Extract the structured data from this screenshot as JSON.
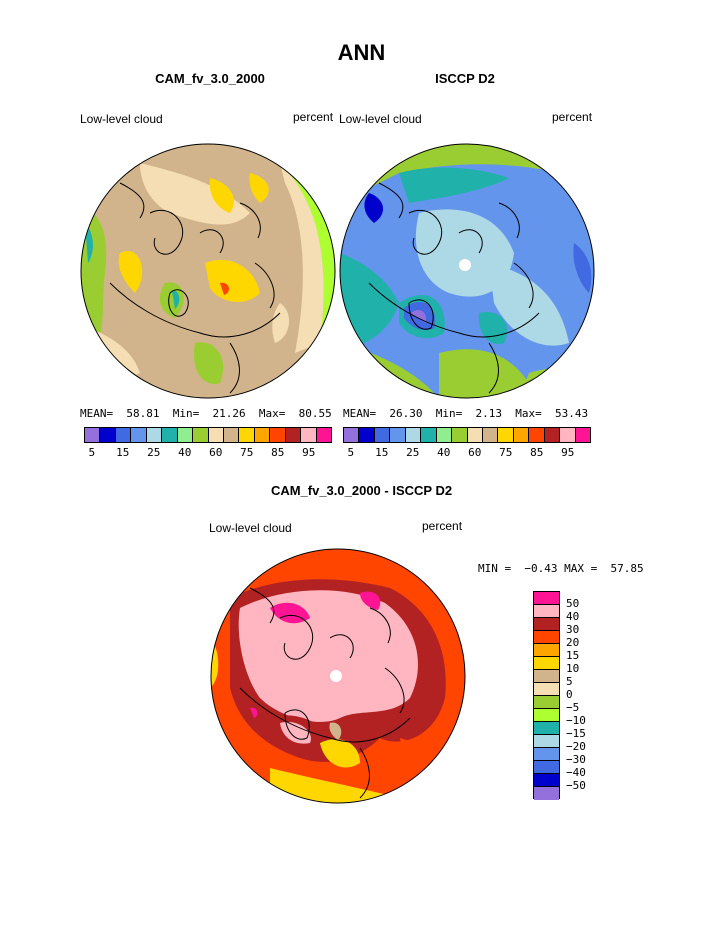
{
  "page_title": "ANN",
  "panels": [
    {
      "title": "CAM_fv_3.0_2000",
      "var_label": "Low-level cloud",
      "units": "percent",
      "mean_label": "MEAN=",
      "mean": "58.81",
      "min_label": "Min=",
      "min": "21.26",
      "max_label": "Max=",
      "max": "80.55"
    },
    {
      "title": "ISCCP D2",
      "var_label": "Low-level cloud",
      "units": "percent",
      "mean_label": "MEAN=",
      "mean": "26.30",
      "min_label": "Min=",
      "min": "2.13",
      "max_label": "Max=",
      "max": "53.43"
    }
  ],
  "colorbar_abs": {
    "colors": [
      "#9370db",
      "#0000cd",
      "#4169e1",
      "#6495ed",
      "#add8e6",
      "#20b2aa",
      "#90ee90",
      "#9acd32",
      "#f5deb3",
      "#d2b48c",
      "#ffd700",
      "#ffa500",
      "#ff4500",
      "#b22222",
      "#ffb6c1",
      "#ff1493"
    ],
    "tick_labels": [
      "5",
      "15",
      "25",
      "40",
      "60",
      "75",
      "85",
      "95"
    ]
  },
  "diff_panel": {
    "title": "CAM_fv_3.0_2000 - ISCCP D2",
    "var_label": "Low-level cloud",
    "units": "percent",
    "minmax_text": "MIN =  −0.43 MAX =  57.85"
  },
  "colorbar_diff": {
    "colors": [
      "#ff1493",
      "#ffb6c1",
      "#b22222",
      "#ff4500",
      "#ffa500",
      "#ffd700",
      "#d2b48c",
      "#f5deb3",
      "#9acd32",
      "#adff2f",
      "#20b2aa",
      "#add8e6",
      "#6495ed",
      "#4169e1",
      "#0000cd",
      "#9370db"
    ],
    "tick_labels": [
      "50",
      "40",
      "30",
      "20",
      "15",
      "10",
      "5",
      "0",
      "−5",
      "−10",
      "−15",
      "−20",
      "−30",
      "−40",
      "−50"
    ]
  },
  "map_colors": {
    "model_base": "#d2b48c",
    "model_light": "#f5deb3",
    "model_yellow": "#ffd700",
    "model_green": "#9acd32",
    "model_lightgreen": "#adff2f",
    "obs_base": "#add8e6",
    "obs_mid": "#6495ed",
    "obs_teal": "#20b2aa",
    "obs_green": "#9acd32",
    "obs_dark": "#0000cd",
    "diff_base": "#ff4500",
    "diff_dark": "#b22222",
    "diff_pink": "#ffb6c1",
    "diff_magenta": "#ff1493",
    "diff_yellow": "#ffd700"
  }
}
